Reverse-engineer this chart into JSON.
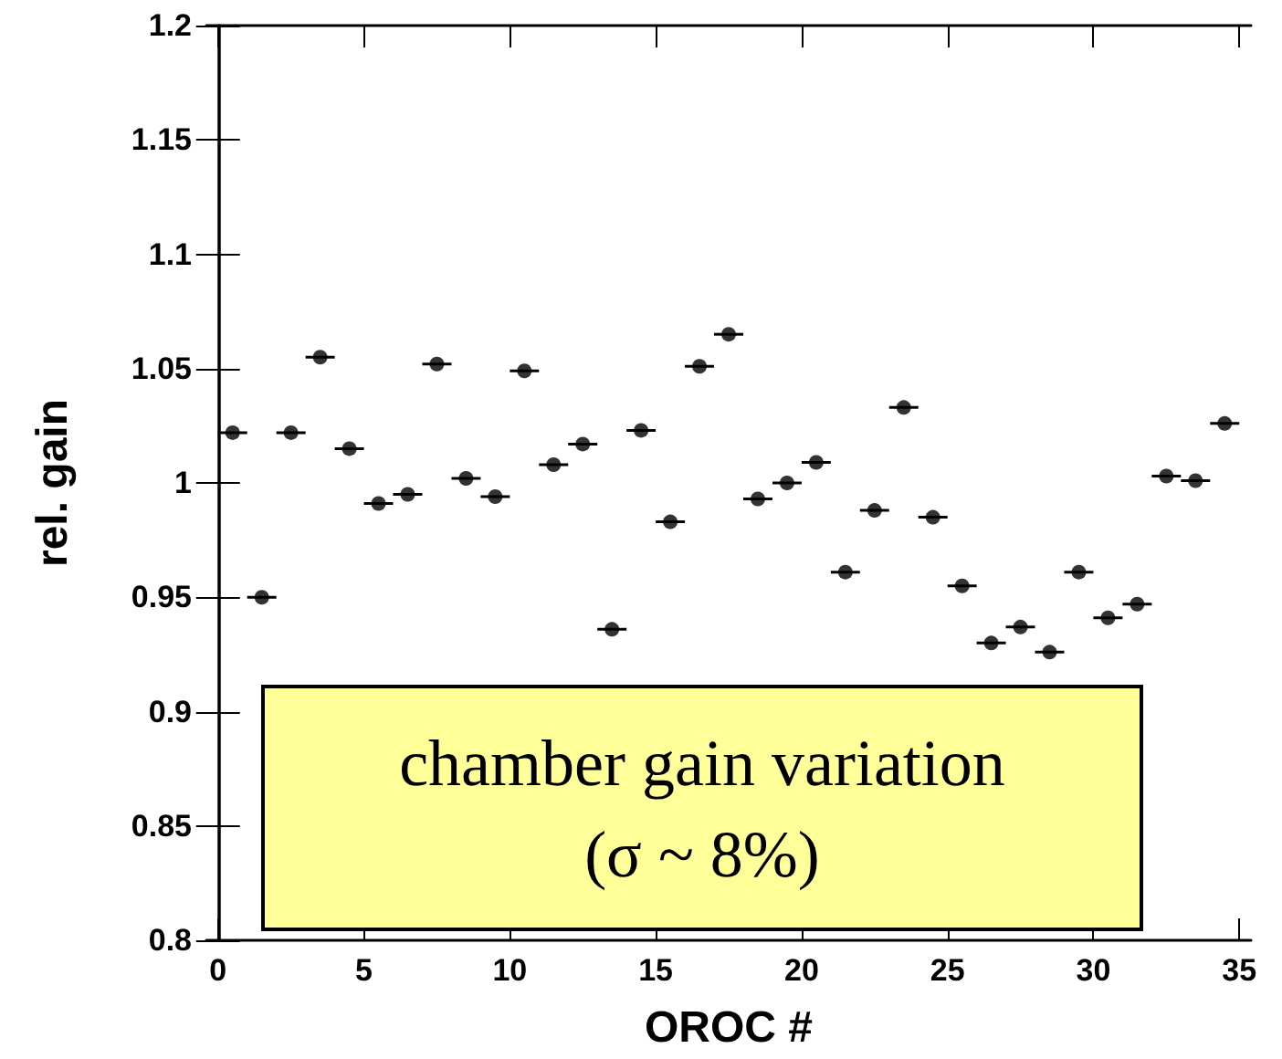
{
  "chart_data": {
    "type": "scatter",
    "xlabel": "OROC #",
    "ylabel": "rel. gain",
    "x": [
      0.5,
      1.5,
      2.5,
      3.5,
      4.5,
      5.5,
      6.5,
      7.5,
      8.5,
      9.5,
      10.5,
      11.5,
      12.5,
      13.5,
      14.5,
      15.5,
      16.5,
      17.5,
      18.5,
      19.5,
      20.5,
      21.5,
      22.5,
      23.5,
      24.5,
      25.5,
      26.5,
      27.5,
      28.5,
      29.5,
      30.5,
      31.5,
      32.5,
      33.5,
      34.5
    ],
    "series": [
      {
        "color": "#000000",
        "values": [
          1.022,
          0.95,
          1.022,
          1.055,
          1.015,
          0.991,
          0.995,
          1.052,
          1.002,
          0.994,
          1.049,
          1.008,
          1.017,
          0.936,
          1.023,
          0.983,
          1.051,
          1.065,
          0.993,
          1.0,
          1.009,
          0.961,
          0.988,
          1.033,
          0.985,
          0.955,
          0.93,
          0.937,
          0.926,
          0.961,
          0.941,
          0.947,
          1.003,
          1.001,
          1.026
        ],
        "xerrors": [
          0.5,
          0.5,
          0.5,
          0.5,
          0.5,
          0.5,
          0.5,
          0.5,
          0.5,
          0.5,
          0.5,
          0.5,
          0.5,
          0.5,
          0.5,
          0.5,
          0.5,
          0.5,
          0.5,
          0.5,
          0.5,
          0.5,
          0.5,
          0.5,
          0.5,
          0.5,
          0.5,
          0.5,
          0.5,
          0.5,
          0.5,
          0.5,
          0.5,
          0.5,
          0.5
        ]
      }
    ],
    "xlim": [
      -0.4,
      35.4
    ],
    "xticks": [
      0,
      5,
      10,
      15,
      20,
      25,
      30,
      35
    ],
    "ylim": [
      0.8,
      1.2
    ],
    "yticks": [
      0.8,
      0.85,
      0.9,
      0.95,
      1,
      1.05,
      1.1,
      1.15,
      1.2
    ],
    "marker": "circle",
    "grid": false,
    "legend": false,
    "annotations": [
      "chamber gain variation",
      "(σ ~ 8%)"
    ]
  }
}
